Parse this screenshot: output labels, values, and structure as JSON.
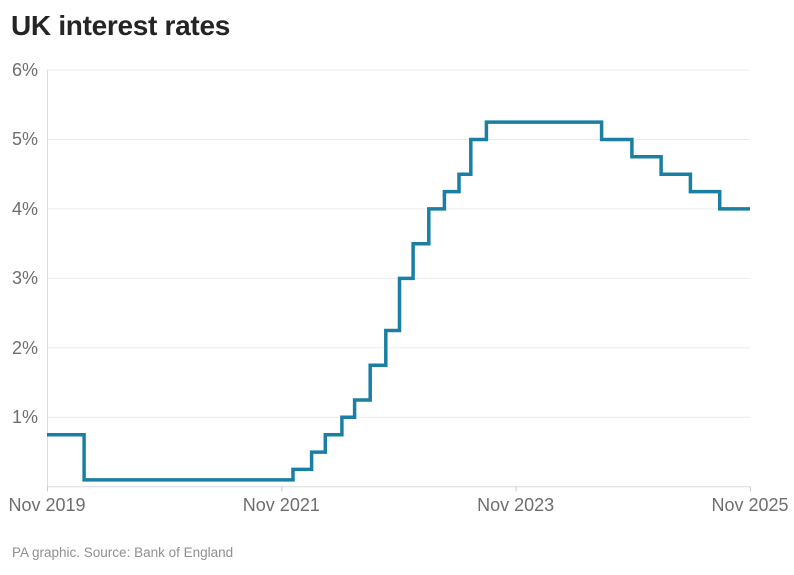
{
  "title": "UK interest rates",
  "footer": "PA graphic. Source: Bank of England",
  "chart_data": {
    "type": "line",
    "line_style": "step-after",
    "title": "UK interest rates",
    "xlabel": "",
    "ylabel": "",
    "legend_position": "none",
    "grid": "horizontal-only",
    "line_color": "#1b7fa4",
    "colors": {
      "grid": "#ebebeb",
      "axis": "#dcdcdc",
      "tick": "#c9c9c9",
      "title_text": "#242424",
      "axis_text": "#6e6e6e",
      "footer_text": "#8f8f8f",
      "background": "#ffffff"
    },
    "x_axis": {
      "unit": "months since Nov 2019",
      "range_months": [
        0,
        72
      ],
      "tick_months": [
        0,
        24,
        48,
        72
      ],
      "tick_labels": [
        "Nov 2019",
        "Nov 2021",
        "Nov 2023",
        "Nov 2025"
      ]
    },
    "y_axis": {
      "unit": "percent",
      "range": [
        0,
        6
      ],
      "tick_values": [
        1,
        2,
        3,
        4,
        5,
        6
      ],
      "tick_labels": [
        "1%",
        "2%",
        "3%",
        "4%",
        "5%",
        "6%"
      ]
    },
    "series": [
      {
        "name": "UK interest rates",
        "points": [
          {
            "date": "Nov 2019",
            "month": 0,
            "value": 0.75
          },
          {
            "date": "Mar 2020",
            "month": 3.8,
            "value": 0.1
          },
          {
            "date": "Dec 2021",
            "month": 25.2,
            "value": 0.25
          },
          {
            "date": "Feb 2022",
            "month": 27.1,
            "value": 0.5
          },
          {
            "date": "Mar 2022",
            "month": 28.5,
            "value": 0.75
          },
          {
            "date": "May 2022",
            "month": 30.2,
            "value": 1.0
          },
          {
            "date": "Jun 2022",
            "month": 31.5,
            "value": 1.25
          },
          {
            "date": "Aug 2022",
            "month": 33.1,
            "value": 1.75
          },
          {
            "date": "Sep 2022",
            "month": 34.7,
            "value": 2.25
          },
          {
            "date": "Nov 2022",
            "month": 36.1,
            "value": 3.0
          },
          {
            "date": "Dec 2022",
            "month": 37.5,
            "value": 3.5
          },
          {
            "date": "Feb 2023",
            "month": 39.1,
            "value": 4.0
          },
          {
            "date": "Mar 2023",
            "month": 40.7,
            "value": 4.25
          },
          {
            "date": "May 2023",
            "month": 42.2,
            "value": 4.5
          },
          {
            "date": "Jun 2023",
            "month": 43.4,
            "value": 5.0
          },
          {
            "date": "Aug 2023",
            "month": 45.0,
            "value": 5.25
          },
          {
            "date": "Aug 2024",
            "month": 56.8,
            "value": 5.0
          },
          {
            "date": "Nov 2024",
            "month": 59.9,
            "value": 4.75
          },
          {
            "date": "Feb 2025",
            "month": 62.9,
            "value": 4.5
          },
          {
            "date": "May 2025",
            "month": 65.9,
            "value": 4.25
          },
          {
            "date": "Aug 2025",
            "month": 68.9,
            "value": 4.0
          },
          {
            "date": "Nov 2025",
            "month": 72,
            "value": 4.0
          }
        ]
      }
    ]
  }
}
